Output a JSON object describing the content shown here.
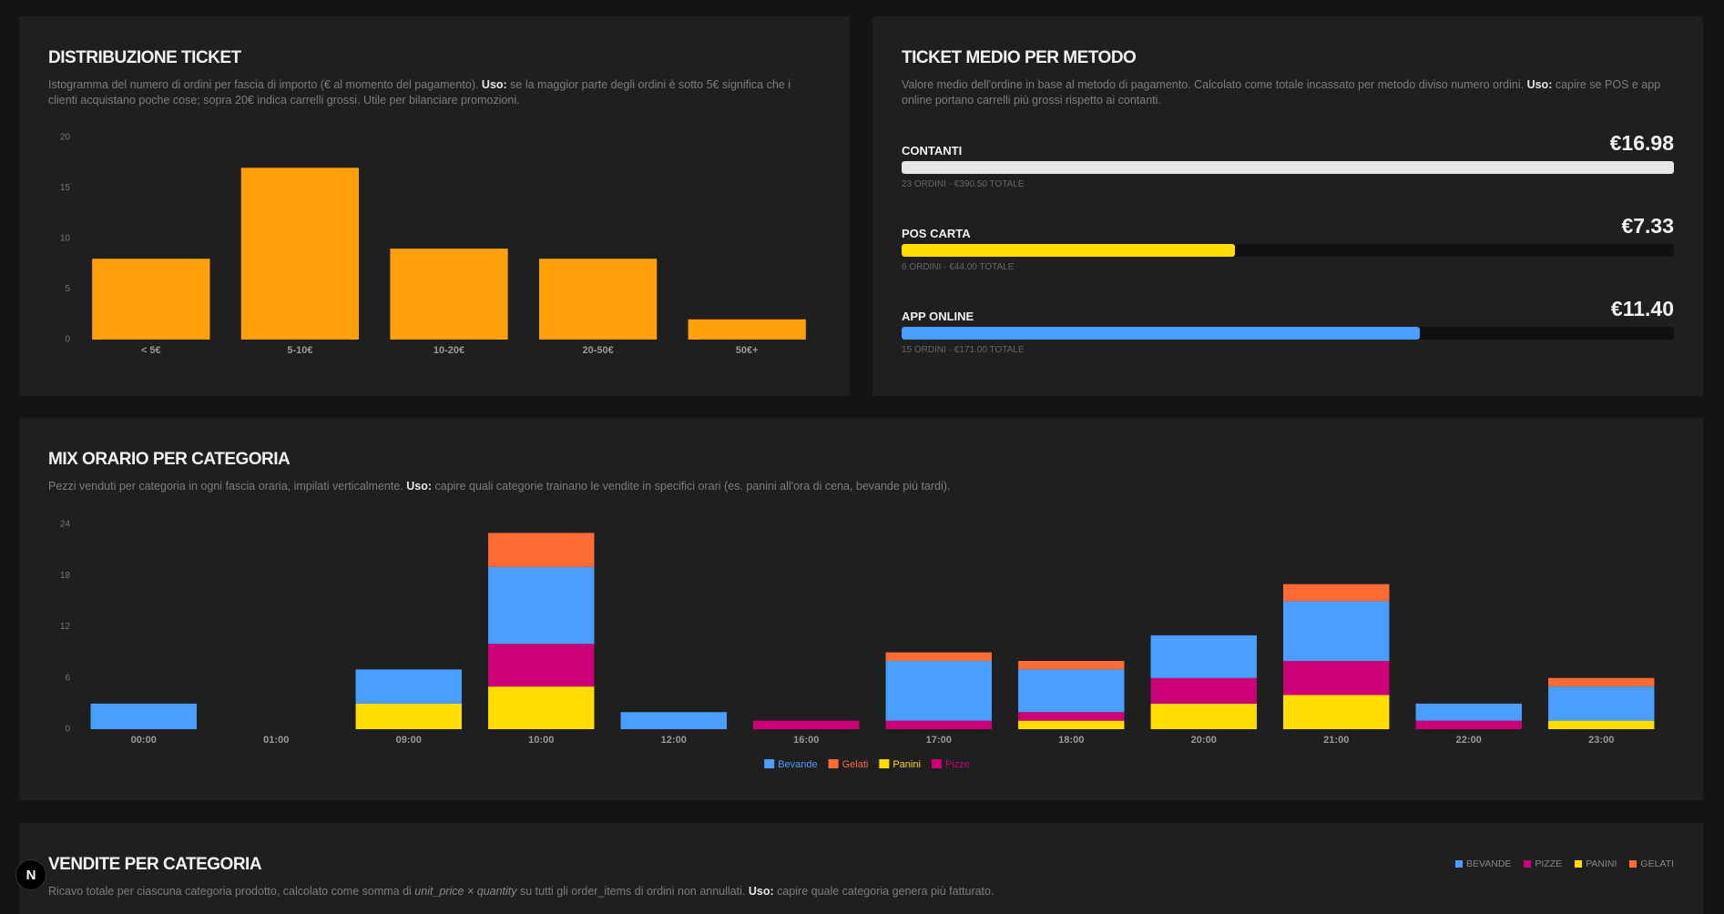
{
  "chart_data": [
    {
      "type": "bar",
      "title": "DISTRIBUZIONE TICKET",
      "description": {
        "before": "Istogramma del numero di ordini per fascia di importo (€ al momento del pagamento). ",
        "bold": "Uso:",
        "after": " se la maggior parte degli ordini è sotto 5€ significa che i clienti acquistano poche cose; sopra 20€ indica carrelli grossi. Utile per bilanciare promozioni."
      },
      "categories": [
        "< 5€",
        "5-10€",
        "10-20€",
        "20-50€",
        "50€+"
      ],
      "values": [
        8,
        17,
        9,
        8,
        2
      ],
      "color": "#ffa00a",
      "ylim": [
        0,
        20
      ],
      "yticks": [
        0,
        5,
        10,
        15,
        20
      ]
    },
    {
      "type": "stacked_bar",
      "title": "MIX ORARIO PER CATEGORIA",
      "description": {
        "before": "Pezzi venduti per categoria in ogni fascia oraria, impilati verticalmente. ",
        "bold": "Uso:",
        "after": " capire quali categorie trainano le vendite in specifici orari (es. panini all'ora di cena, bevande più tardi)."
      },
      "categories": [
        "00:00",
        "01:00",
        "09:00",
        "10:00",
        "12:00",
        "16:00",
        "17:00",
        "18:00",
        "20:00",
        "21:00",
        "22:00",
        "23:00"
      ],
      "series": [
        {
          "name": "Panini",
          "color": "#ffdd00",
          "values": [
            0,
            0,
            3,
            5,
            0,
            0,
            0,
            1,
            3,
            4,
            0,
            1
          ]
        },
        {
          "name": "Pizze",
          "color": "#cc0077",
          "values": [
            0,
            0,
            0,
            5,
            0,
            1,
            1,
            1,
            3,
            4,
            1,
            0
          ]
        },
        {
          "name": "Bevande",
          "color": "#4a9eff",
          "values": [
            3,
            0,
            4,
            9,
            2,
            0,
            7,
            5,
            5,
            7,
            2,
            4
          ]
        },
        {
          "name": "Gelati",
          "color": "#ff6b35",
          "values": [
            0,
            0,
            0,
            4,
            0,
            0,
            1,
            1,
            0,
            2,
            0,
            1
          ]
        }
      ],
      "legend_order": [
        2,
        3,
        0,
        1
      ],
      "ylim": [
        0,
        24
      ],
      "yticks": [
        0,
        6,
        12,
        18,
        24
      ]
    }
  ],
  "ticket_medio": {
    "title": "TICKET MEDIO PER METODO",
    "description": {
      "before": "Valore medio dell'ordine in base al metodo di pagamento. Calcolato come totale incassato per metodo diviso numero ordini. ",
      "bold": "Uso:",
      "after": " capire se POS e app online portano carrelli più grossi rispetto ai contanti."
    },
    "methods": [
      {
        "name": "CONTANTI",
        "value": 16.98,
        "value_label": "€16.98",
        "detail": "23 ORDINI · €390.50 TOTALE",
        "color": "#e6e6e6"
      },
      {
        "name": "POS CARTA",
        "value": 7.33,
        "value_label": "€7.33",
        "detail": "6 ORDINI · €44.00 TOTALE",
        "color": "#ffdd00"
      },
      {
        "name": "APP ONLINE",
        "value": 11.4,
        "value_label": "€11.40",
        "detail": "15 ORDINI · €171.00 TOTALE",
        "color": "#4a9eff"
      }
    ]
  },
  "vendite": {
    "title": "VENDITE PER CATEGORIA",
    "description": {
      "before": "Ricavo totale per ciascuna categoria prodotto, calcolato come somma di ",
      "italic": "unit_price × quantity",
      "middle": " su tutti gli order_items di ordini non annullati. ",
      "bold": "Uso:",
      "after": " capire quale categoria genera più fatturato."
    },
    "legend": [
      {
        "name": "BEVANDE",
        "color": "#4a9eff"
      },
      {
        "name": "PIZZE",
        "color": "#cc0077"
      },
      {
        "name": "PANINI",
        "color": "#ffdd00"
      },
      {
        "name": "GELATI",
        "color": "#ff6b35"
      }
    ]
  },
  "badge": "N"
}
